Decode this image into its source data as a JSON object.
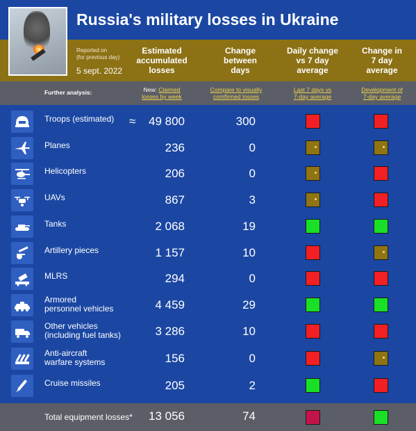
{
  "header": {
    "title": "Russia's military losses in Ukraine",
    "reported_line1": "Reported on",
    "reported_line2": "(for previous day)",
    "report_date": "5 sept. 2022",
    "col_accumulated": [
      "Estimated",
      "accumulated",
      "losses"
    ],
    "col_change": [
      "Change",
      "between",
      "days"
    ],
    "col_daily": [
      "Daily change",
      "vs 7 day",
      "average"
    ],
    "col_seven": [
      "Change in",
      "7 day",
      "average"
    ]
  },
  "analysis": {
    "label": "Further analysis:",
    "new_prefix": "New: ",
    "claimed_link": [
      "Claimed",
      "losses by week"
    ],
    "compare_link": [
      "Compare to visually",
      "comfirmed losses"
    ],
    "last7_link": [
      "Last 7 days vs",
      "7-day average"
    ],
    "dev_link": [
      "Development of",
      "7-day average"
    ]
  },
  "rows": [
    {
      "label": [
        "Troops (estimated)"
      ],
      "approx": "≈",
      "value": "49 800",
      "change": "300",
      "daily": "red",
      "seven": "red",
      "icon": "helmet-icon"
    },
    {
      "label": [
        "Planes"
      ],
      "approx": "",
      "value": "236",
      "change": "0",
      "daily": "gold",
      "seven": "gold",
      "icon": "plane-icon"
    },
    {
      "label": [
        "Helicopters"
      ],
      "approx": "",
      "value": "206",
      "change": "0",
      "daily": "gold",
      "seven": "red",
      "icon": "helicopter-icon"
    },
    {
      "label": [
        "UAVs"
      ],
      "approx": "",
      "value": "867",
      "change": "3",
      "daily": "gold",
      "seven": "red",
      "icon": "drone-icon"
    },
    {
      "label": [
        "Tanks"
      ],
      "approx": "",
      "value": "2 068",
      "change": "19",
      "daily": "green",
      "seven": "green",
      "icon": "tank-icon"
    },
    {
      "label": [
        "Artillery pieces"
      ],
      "approx": "",
      "value": "1 157",
      "change": "10",
      "daily": "red",
      "seven": "gold",
      "icon": "artillery-icon"
    },
    {
      "label": [
        "MLRS"
      ],
      "approx": "",
      "value": "294",
      "change": "0",
      "daily": "red",
      "seven": "red",
      "icon": "rocket-launcher-icon"
    },
    {
      "label": [
        "Armored",
        "personnel vehicles"
      ],
      "approx": "",
      "value": "4 459",
      "change": "29",
      "daily": "green",
      "seven": "green",
      "icon": "apc-icon"
    },
    {
      "label": [
        "Other vehicles",
        "(including fuel tanks)"
      ],
      "approx": "",
      "value": "3 286",
      "change": "10",
      "daily": "red",
      "seven": "red",
      "icon": "truck-icon"
    },
    {
      "label": [
        "Anti-aircraft",
        "warfare systems"
      ],
      "approx": "",
      "value": "156",
      "change": "0",
      "daily": "red",
      "seven": "gold",
      "icon": "anti-aircraft-icon"
    },
    {
      "label": [
        "Cruise missiles"
      ],
      "approx": "",
      "value": "205",
      "change": "2",
      "daily": "green",
      "seven": "red",
      "icon": "missile-icon"
    }
  ],
  "total": {
    "label": "Total equipment losses*",
    "value": "13 056",
    "change": "74",
    "daily": "crimson",
    "seven": "green"
  },
  "colors": {
    "background": "#1b47a3",
    "header_band": "#8c7115",
    "analysis_band": "#5b5e66",
    "link": "#f0d34a",
    "red": "#f21f25",
    "green": "#19e026",
    "gold": "#8f7414",
    "crimson": "#c2144a"
  }
}
